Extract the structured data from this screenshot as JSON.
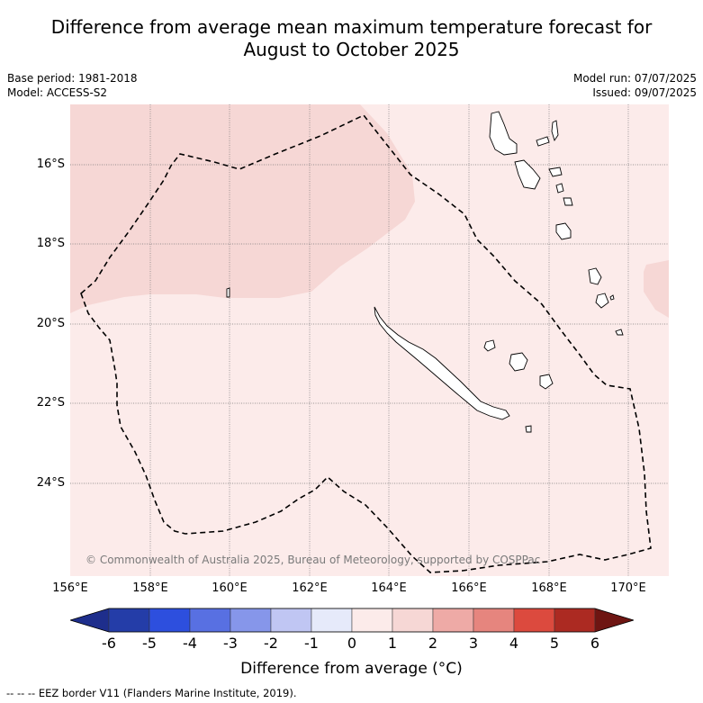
{
  "title_line1": "Difference from average mean maximum temperature forecast for",
  "title_line2": "August to October 2025",
  "base_period": "Base period: 1981-2018",
  "model": "Model: ACCESS-S2",
  "model_run": "Model run: 07/07/2025",
  "issued": "Issued: 09/07/2025",
  "lat_labels": [
    "16°S",
    "18°S",
    "20°S",
    "22°S",
    "24°S"
  ],
  "lon_labels": [
    "156°E",
    "158°E",
    "160°E",
    "162°E",
    "164°E",
    "166°E",
    "168°E",
    "170°E"
  ],
  "copyright": "© Commonwealth of Australia 2025, Bureau of Meteorology, supported by COSPPac",
  "colorbar": {
    "ticks": [
      "-6",
      "-5",
      "-4",
      "-3",
      "-2",
      "-1",
      "0",
      "1",
      "2",
      "3",
      "4",
      "5",
      "6"
    ],
    "colors": [
      "#1e2e8c",
      "#243da8",
      "#2d4fde",
      "#5870e2",
      "#8696ea",
      "#c0c6f3",
      "#e6eafa",
      "#fcebea",
      "#f6d7d5",
      "#eeaaa6",
      "#e6857e",
      "#dc4a3e",
      "#ac2a22",
      "#6e1512"
    ],
    "label": "Difference from average (°C)"
  },
  "map_colors": {
    "band_0_1": "#fcebea",
    "band_1_2": "#f6d7d5",
    "land_edge": "#000000",
    "eez": "#000000"
  },
  "footer": "--  --  -- EEZ border V11 (Flanders Marine Institute, 2019)."
}
